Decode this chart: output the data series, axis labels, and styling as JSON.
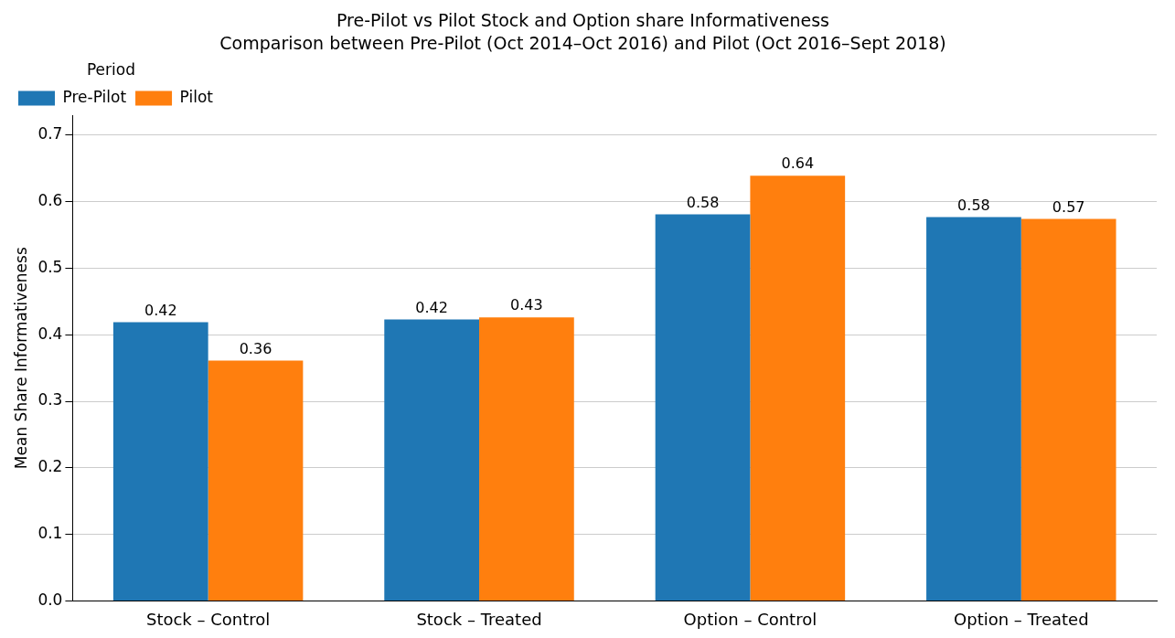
{
  "chart_data": {
    "type": "bar",
    "title": "Pre-Pilot vs Pilot Stock and Option share Informativeness",
    "subtitle": "Comparison between Pre-Pilot (Oct 2014–Oct 2016) and Pilot (Oct 2016–Sept 2018)",
    "ylabel": "Mean Share Informativeness",
    "legend_title": "Period",
    "categories": [
      "Stock – Control",
      "Stock – Treated",
      "Option – Control",
      "Option – Treated"
    ],
    "series": [
      {
        "name": "Pre-Pilot",
        "color": "#1f77b4",
        "values": [
          0.419,
          0.423,
          0.581,
          0.577
        ],
        "value_labels": [
          "0.42",
          "0.42",
          "0.58",
          "0.58"
        ]
      },
      {
        "name": "Pilot",
        "color": "#ff7f0e",
        "values": [
          0.361,
          0.426,
          0.639,
          0.574
        ],
        "value_labels": [
          "0.36",
          "0.43",
          "0.64",
          "0.57"
        ]
      }
    ],
    "ylim": [
      0,
      0.73
    ],
    "yticks": [
      {
        "value": 0,
        "label": "0.0"
      },
      0.1,
      0.2,
      0.3,
      0.4,
      0.5,
      0.6,
      0.7
    ],
    "grid": "y",
    "legend": "top left"
  }
}
